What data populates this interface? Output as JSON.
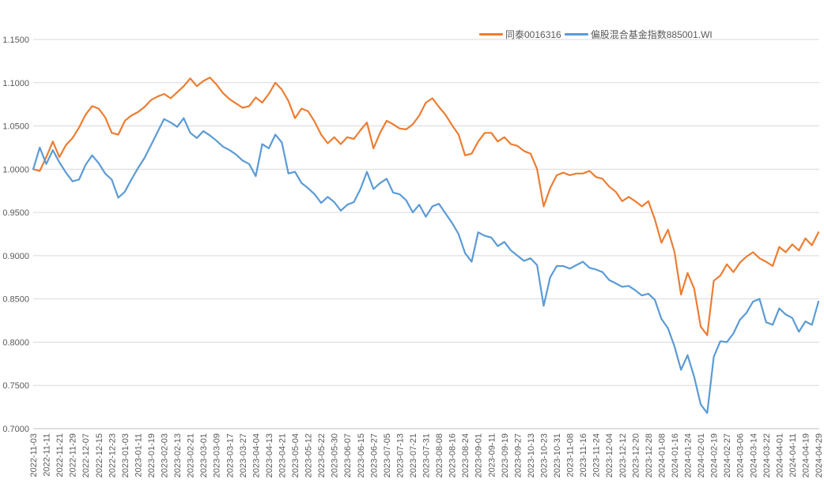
{
  "chart": {
    "background": "#FFFFFF",
    "grid_color": "#D9D9D9",
    "axis_color": "#BFBFBF",
    "text_color": "#595959",
    "y_axis": {
      "labels": [
        "1.1500",
        "1.1000",
        "1.0500",
        "1.0000",
        "0.9500",
        "0.9000",
        "0.8500",
        "0.8000",
        "0.7500",
        "0.7000"
      ]
    }
  },
  "chart_data": {
    "type": "line",
    "title": "",
    "xlabel": "",
    "ylabel": "",
    "ylim": [
      0.7,
      1.15
    ],
    "ytick_step": 0.05,
    "grid": true,
    "legend_position": "top",
    "points_per_tick_interval": 2,
    "x": [
      "2022-11-03",
      "2022-11-11",
      "2022-11-21",
      "2022-11-29",
      "2022-12-07",
      "2022-12-15",
      "2022-12-23",
      "2023-01-03",
      "2023-01-11",
      "2023-01-19",
      "2023-02-03",
      "2023-02-13",
      "2023-02-21",
      "2023-03-01",
      "2023-03-09",
      "2023-03-17",
      "2023-03-27",
      "2023-04-04",
      "2023-04-13",
      "2023-04-21",
      "2023-05-04",
      "2023-05-12",
      "2023-05-22",
      "2023-05-30",
      "2023-06-07",
      "2023-06-15",
      "2023-06-27",
      "2023-07-05",
      "2023-07-13",
      "2023-07-21",
      "2023-07-31",
      "2023-08-08",
      "2023-08-16",
      "2023-08-24",
      "2023-09-01",
      "2023-09-11",
      "2023-09-19",
      "2023-09-27",
      "2023-10-13",
      "2023-10-23",
      "2023-10-31",
      "2023-11-08",
      "2023-11-16",
      "2023-11-24",
      "2023-12-04",
      "2023-12-12",
      "2023-12-20",
      "2023-12-28",
      "2024-01-08",
      "2024-01-16",
      "2024-01-24",
      "2024-02-01",
      "2024-02-19",
      "2024-02-27",
      "2024-03-06",
      "2024-03-14",
      "2024-03-22",
      "2024-04-01",
      "2024-04-11",
      "2024-04-19",
      "2024-04-29"
    ],
    "series": [
      {
        "name": "同泰0016316",
        "color": "#ED7D31",
        "values": [
          1.0,
          0.998,
          1.014,
          1.032,
          1.014,
          1.028,
          1.036,
          1.048,
          1.063,
          1.073,
          1.07,
          1.06,
          1.042,
          1.04,
          1.056,
          1.062,
          1.066,
          1.072,
          1.08,
          1.084,
          1.087,
          1.082,
          1.089,
          1.096,
          1.105,
          1.096,
          1.102,
          1.106,
          1.098,
          1.088,
          1.081,
          1.076,
          1.071,
          1.073,
          1.083,
          1.077,
          1.087,
          1.1,
          1.092,
          1.079,
          1.059,
          1.07,
          1.067,
          1.055,
          1.04,
          1.03,
          1.037,
          1.029,
          1.037,
          1.035,
          1.045,
          1.054,
          1.024,
          1.042,
          1.056,
          1.052,
          1.047,
          1.046,
          1.052,
          1.062,
          1.077,
          1.082,
          1.072,
          1.063,
          1.051,
          1.04,
          1.016,
          1.018,
          1.032,
          1.042,
          1.042,
          1.032,
          1.037,
          1.029,
          1.027,
          1.021,
          1.018,
          1.0,
          0.957,
          0.978,
          0.993,
          0.996,
          0.993,
          0.995,
          0.995,
          0.998,
          0.991,
          0.989,
          0.98,
          0.974,
          0.963,
          0.968,
          0.963,
          0.957,
          0.963,
          0.942,
          0.915,
          0.93,
          0.904,
          0.855,
          0.88,
          0.862,
          0.818,
          0.808,
          0.871,
          0.877,
          0.89,
          0.881,
          0.892,
          0.899,
          0.904,
          0.897,
          0.893,
          0.888,
          0.91,
          0.904,
          0.913,
          0.906,
          0.92,
          0.912,
          0.927
        ]
      },
      {
        "name": "偏股混合基金指数885001.WI",
        "color": "#5B9BD5",
        "values": [
          1.0,
          1.025,
          1.006,
          1.022,
          1.008,
          0.996,
          0.986,
          0.988,
          1.005,
          1.016,
          1.007,
          0.995,
          0.988,
          0.967,
          0.974,
          0.988,
          1.001,
          1.013,
          1.028,
          1.043,
          1.058,
          1.054,
          1.049,
          1.059,
          1.042,
          1.036,
          1.044,
          1.039,
          1.033,
          1.026,
          1.022,
          1.017,
          1.01,
          1.006,
          0.992,
          1.029,
          1.024,
          1.04,
          1.031,
          0.995,
          0.997,
          0.984,
          0.978,
          0.971,
          0.961,
          0.968,
          0.962,
          0.952,
          0.959,
          0.962,
          0.977,
          0.997,
          0.977,
          0.984,
          0.989,
          0.973,
          0.971,
          0.964,
          0.95,
          0.959,
          0.945,
          0.957,
          0.96,
          0.949,
          0.938,
          0.925,
          0.903,
          0.893,
          0.927,
          0.923,
          0.921,
          0.911,
          0.916,
          0.906,
          0.9,
          0.894,
          0.897,
          0.889,
          0.842,
          0.875,
          0.888,
          0.888,
          0.885,
          0.889,
          0.893,
          0.886,
          0.884,
          0.881,
          0.872,
          0.868,
          0.864,
          0.865,
          0.86,
          0.854,
          0.856,
          0.849,
          0.827,
          0.816,
          0.795,
          0.768,
          0.785,
          0.76,
          0.728,
          0.718,
          0.783,
          0.801,
          0.8,
          0.81,
          0.826,
          0.834,
          0.847,
          0.85,
          0.823,
          0.82,
          0.839,
          0.832,
          0.828,
          0.812,
          0.824,
          0.82,
          0.847
        ]
      }
    ]
  }
}
